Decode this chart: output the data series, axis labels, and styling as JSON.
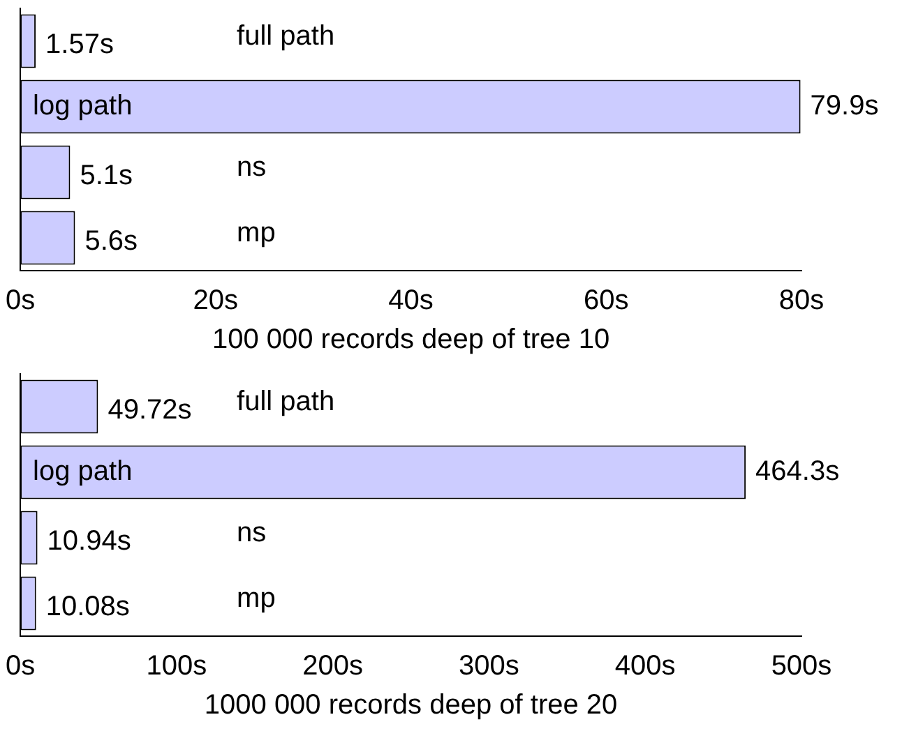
{
  "chart_data": [
    {
      "type": "bar",
      "orientation": "horizontal",
      "xlabel": "100 000 records deep of tree 10",
      "categories": [
        "full path",
        "log path",
        "ns",
        "mp"
      ],
      "values": [
        1.57,
        79.9,
        5.1,
        5.6
      ],
      "value_labels": [
        "1.57s",
        "79.9s",
        "5.1s",
        "5.6s"
      ],
      "color": "#ccccff",
      "xlim": [
        0,
        80
      ],
      "xticks": [
        {
          "value": 0,
          "label": "0s"
        },
        {
          "value": 20,
          "label": "20s"
        },
        {
          "value": 40,
          "label": "40s"
        },
        {
          "value": 60,
          "label": "60s"
        },
        {
          "value": 80,
          "label": "80s"
        }
      ],
      "tick_labels": "x"
    },
    {
      "type": "bar",
      "orientation": "horizontal",
      "xlabel": "1000 000 records deep of tree 20",
      "categories": [
        "full path",
        "log path",
        "ns",
        "mp"
      ],
      "values": [
        49.72,
        464.3,
        10.94,
        10.08
      ],
      "value_labels": [
        "49.72s",
        "464.3s",
        "10.94s",
        "10.08s"
      ],
      "color": "#ccccff",
      "xlim": [
        0,
        500
      ],
      "xticks": [
        {
          "value": 0,
          "label": "0s"
        },
        {
          "value": 100,
          "label": "100s"
        },
        {
          "value": 200,
          "label": "200s"
        },
        {
          "value": 300,
          "label": "300s"
        },
        {
          "value": 400,
          "label": "400s"
        },
        {
          "value": 500,
          "label": "500s"
        }
      ],
      "tick_labels": "x"
    }
  ]
}
